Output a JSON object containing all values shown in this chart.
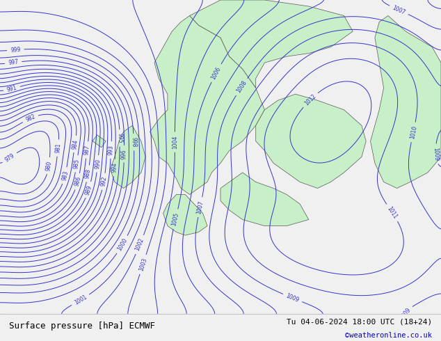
{
  "title_left": "Surface pressure [hPa] ECMWF",
  "title_right": "Tu 04-06-2024 18:00 UTC (18+24)",
  "copyright": "©weatheronline.co.uk",
  "copyright_color": "#0000cc",
  "background_color": "#e8e8e8",
  "land_color": "#c8f0c8",
  "border_color": "#555555",
  "contour_color": "#3333cc",
  "contour_label_color": "#3333cc",
  "footer_bg": "#f0f0f0",
  "footer_text_color": "#000000",
  "pressure_min": 975,
  "pressure_max": 1012,
  "pressure_step": 1
}
